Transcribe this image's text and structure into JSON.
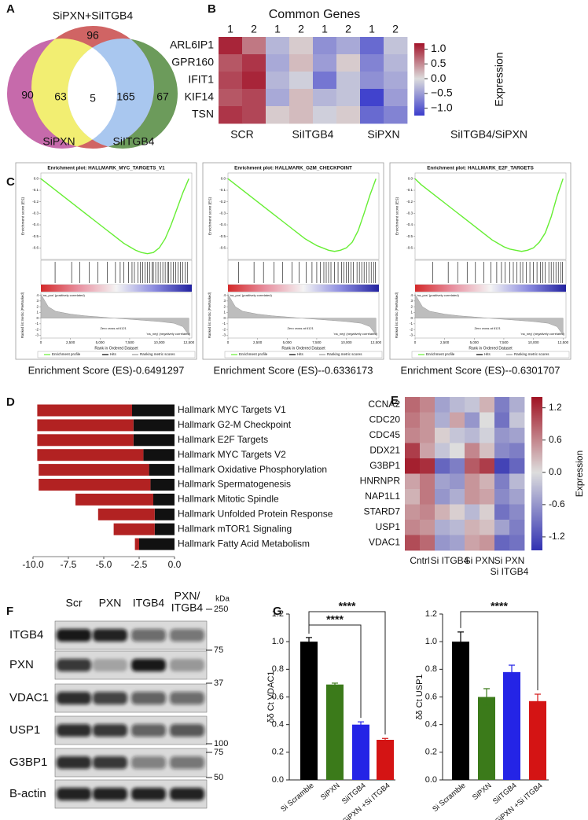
{
  "chart_data": [
    {
      "type": "venn",
      "label": "A",
      "sets": [
        "SiPXN",
        "SiITGB4",
        "SiPXN+SiITGB4"
      ],
      "regions": [
        90,
        63,
        5,
        165,
        67,
        96
      ],
      "colors": [
        "#c66aab",
        "#6c9b5b",
        "#d06464",
        "#f2ee72",
        "#a9c7ef",
        "#ffffff"
      ]
    },
    {
      "type": "heatmap",
      "label": "B",
      "title": "Common Genes",
      "rows": [
        "ARL6IP1",
        "GPR160",
        "IFIT1",
        "KIF14",
        "TSN"
      ],
      "columns": [
        "1",
        "2",
        "1",
        "2",
        "1",
        "2",
        "1",
        "2"
      ],
      "groups": [
        "SCR",
        "SiITGB4",
        "SiPXN"
      ],
      "values": [
        [
          1.1,
          0.6,
          -0.3,
          0.1,
          -0.6,
          -0.4,
          -0.9,
          -0.2
        ],
        [
          0.8,
          1.0,
          -0.4,
          0.2,
          -0.5,
          0.1,
          -0.7,
          -0.3
        ],
        [
          0.9,
          1.1,
          -0.3,
          -0.1,
          -0.8,
          -0.2,
          -0.6,
          -0.4
        ],
        [
          0.8,
          0.9,
          -0.4,
          0.2,
          -0.3,
          -0.2,
          -1.2,
          -0.5
        ],
        [
          1.0,
          0.9,
          0.1,
          0.2,
          -0.1,
          0.1,
          -0.9,
          -0.7
        ]
      ],
      "colors": [
        "#3b3dcc",
        "#dcdcdc",
        "#a3142a"
      ],
      "clim": [
        -1.25,
        1.2
      ],
      "cbar_ticks": [
        {
          "value": 1,
          "label": "1.0"
        },
        0.5,
        {
          "value": 0,
          "label": "0.0"
        },
        {
          "value": -0.5,
          "label": "−0.5"
        },
        {
          "value": -1,
          "label": "−1.0"
        }
      ],
      "cbar_label": "Expression",
      "caption": "SiITGB4/SiPXN"
    },
    {
      "type": "gsea",
      "label": "C",
      "es_label": "Enrichment score (ES)",
      "metric_label": "Ranked list metric (PreRanked)",
      "xlabel": "Rank in Ordered Dataset",
      "xlim": [
        0,
        12750
      ],
      "xticks": [
        0,
        {
          "value": 2500,
          "label": "2,500"
        },
        {
          "value": 5000,
          "label": "5,000"
        },
        {
          "value": 7500,
          "label": "7,500"
        },
        {
          "value": 10000,
          "label": "10,000"
        },
        {
          "value": 12500,
          "label": "12,500"
        }
      ],
      "es_ylim": [
        -0.7,
        0.05
      ],
      "es_yticks": [
        {
          "value": 0,
          "label": "0.0"
        },
        -0.1,
        -0.2,
        -0.3,
        -0.4,
        -0.5,
        -0.6
      ],
      "metric_ylim": [
        -3.5,
        4.5
      ],
      "metric_yticks": [
        4,
        3,
        2,
        1,
        0,
        -1,
        -2,
        -3
      ],
      "pos_label": "'na_pos' (positively correlated)",
      "neg_label": "'na_neg' (negatively correlated)",
      "zero_cross": "Zero cross at 6121",
      "legend": [
        "Enrichment profile",
        "Hits",
        "Ranking metric scores"
      ],
      "legend_colors": [
        "#66ee33",
        "#000000",
        "#999999"
      ],
      "es_x": [
        0,
        500,
        1000,
        1500,
        2000,
        2500,
        3000,
        3500,
        4000,
        4500,
        5000,
        5500,
        6000,
        6500,
        7000,
        7500,
        8000,
        8500,
        9000,
        9500,
        10000,
        10500,
        11000,
        11500,
        12000,
        12500
      ],
      "metric_x": [
        0,
        625,
        1250,
        2500,
        3750,
        5000,
        6121,
        7500,
        8750,
        10000,
        11250,
        12000,
        12500
      ],
      "metric_values": [
        4.2,
        2,
        1.2,
        0.7,
        0.4,
        0.2,
        0,
        -0.2,
        -0.4,
        -0.6,
        -0.9,
        -1.5,
        -3
      ],
      "plots": [
        {
          "title": "Enrichment plot: HALLMARK_MYC_TARGETS_V1",
          "caption": "Enrichment Score (ES)-0.6491297",
          "es_values": [
            0,
            -0.04,
            -0.08,
            -0.12,
            -0.16,
            -0.2,
            -0.24,
            -0.28,
            -0.32,
            -0.36,
            -0.4,
            -0.44,
            -0.48,
            -0.52,
            -0.56,
            -0.59,
            -0.62,
            -0.64,
            -0.65,
            -0.64,
            -0.6,
            -0.52,
            -0.4,
            -0.26,
            -0.12,
            0
          ],
          "hits": [
            1200,
            2600,
            3300,
            4100,
            4800,
            5600,
            6300,
            6700,
            7000,
            7400,
            7700,
            7900,
            8200,
            8400,
            8600,
            8800,
            9000,
            9200,
            9400,
            9500,
            9700,
            9900,
            10100,
            10300,
            10500,
            10700,
            10800,
            11000,
            11200,
            11400,
            11600,
            11800,
            12000,
            12200,
            12400
          ]
        },
        {
          "title": "Enrichment plot: HALLMARK_G2M_CHECKPOINT",
          "caption": "Enrichment Score (ES)--0.6336173",
          "es_values": [
            0,
            -0.04,
            -0.08,
            -0.12,
            -0.16,
            -0.2,
            -0.24,
            -0.28,
            -0.32,
            -0.36,
            -0.4,
            -0.44,
            -0.48,
            -0.52,
            -0.55,
            -0.58,
            -0.6,
            -0.62,
            -0.63,
            -0.62,
            -0.6,
            -0.55,
            -0.45,
            -0.3,
            -0.14,
            0
          ],
          "hits": [
            900,
            2200,
            3000,
            3900,
            4600,
            5400,
            6000,
            6600,
            7100,
            7500,
            7800,
            8100,
            8300,
            8500,
            8700,
            9000,
            9300,
            9600,
            9800,
            10000,
            10200,
            10400,
            10600,
            10900,
            11100,
            11300,
            11500,
            11700,
            11900,
            12100,
            12300,
            12450
          ]
        },
        {
          "title": "Enrichment plot: HALLMARK_E2F_TARGETS",
          "caption": "Enrichment Score (ES)--0.6301707",
          "es_values": [
            0,
            -0.05,
            -0.09,
            -0.13,
            -0.17,
            -0.21,
            -0.25,
            -0.29,
            -0.33,
            -0.37,
            -0.41,
            -0.45,
            -0.49,
            -0.53,
            -0.56,
            -0.59,
            -0.61,
            -0.62,
            -0.63,
            -0.62,
            -0.6,
            -0.55,
            -0.47,
            -0.33,
            -0.15,
            0
          ],
          "hits": [
            1500,
            2800,
            3600,
            4400,
            5100,
            5800,
            6400,
            6900,
            7300,
            7600,
            8000,
            8300,
            8600,
            8900,
            9100,
            9400,
            9700,
            10000,
            10300,
            10600,
            10800,
            11000,
            11300,
            11500,
            11700,
            11900,
            12100,
            12300,
            12450
          ]
        }
      ]
    },
    {
      "type": "barh",
      "label": "D",
      "categories": [
        "Hallmark MYC Targets V1",
        "Hallmark G2-M Checkpoint",
        "Hallmark E2F Targets",
        "Hallmark MYC Targets V2",
        "Hallmark Oxidative Phosphorylation",
        "Hallmark Spermatogenesis",
        "Hallmark Mitotic Spindle",
        "Hallmark Unfolded Protein Response",
        "Hallmark mTOR1 Signaling",
        "Hallmark Fatty Acid Metabolism"
      ],
      "series": [
        {
          "color": "#111111",
          "values": [
            -3.0,
            -2.9,
            -2.9,
            -2.2,
            -1.8,
            -1.7,
            -1.5,
            -1.4,
            -1.4,
            -2.5
          ]
        },
        {
          "color": "#b22222",
          "values": [
            -6.7,
            -6.8,
            -6.8,
            -7.5,
            -7.8,
            -7.9,
            -5.5,
            -4.0,
            -2.9,
            -0.3
          ]
        }
      ],
      "xlim": [
        -10,
        0
      ],
      "xticks": [
        {
          "value": -10,
          "label": "-10.0"
        },
        -7.5,
        {
          "value": -5,
          "label": "-5.0"
        },
        -2.5,
        {
          "value": 0,
          "label": "0.0"
        }
      ]
    },
    {
      "type": "heatmap",
      "label": "E",
      "rows": [
        "CCNA2",
        "CDC20",
        "CDC45",
        "DDX21",
        "G3BP1",
        "HNRNPR",
        "NAP1L1",
        "STARD7",
        "USP1",
        "VDAC1"
      ],
      "groups": [
        "Cntrl",
        "Si ITGB4",
        "Si PXN",
        [
          "Si PXN",
          "Si ITGB4"
        ]
      ],
      "values": [
        [
          0.8,
          0.6,
          -0.5,
          -0.3,
          -0.2,
          0.3,
          -0.8,
          -0.4
        ],
        [
          0.7,
          0.5,
          -0.4,
          0.4,
          -0.6,
          0.0,
          -0.9,
          -0.2
        ],
        [
          0.6,
          0.5,
          0.1,
          -0.2,
          -0.3,
          -0.1,
          -0.6,
          -0.5
        ],
        [
          1.1,
          0.4,
          -0.2,
          0.0,
          0.6,
          0.2,
          -0.7,
          -0.8
        ],
        [
          1.3,
          1.2,
          -1.0,
          -0.8,
          0.9,
          1.1,
          -1.3,
          -1.0
        ],
        [
          0.4,
          0.7,
          -0.5,
          -0.6,
          0.5,
          0.3,
          -0.8,
          -0.3
        ],
        [
          0.3,
          0.7,
          -0.6,
          -0.4,
          0.5,
          0.4,
          -0.7,
          -0.5
        ],
        [
          0.5,
          0.6,
          0.3,
          0.1,
          -0.3,
          0.1,
          -0.9,
          -0.7
        ],
        [
          0.6,
          0.5,
          -0.4,
          -0.3,
          0.3,
          0.2,
          -0.5,
          -0.8
        ],
        [
          1.0,
          0.8,
          -0.6,
          -0.5,
          0.4,
          0.5,
          -1.0,
          -0.9
        ]
      ],
      "colors": [
        "#3131b2",
        "#dddddd",
        "#a01222"
      ],
      "clim": [
        -1.45,
        1.4
      ],
      "cbar_ticks": [
        1.2,
        0.6,
        {
          "value": 0,
          "label": "0.0"
        },
        -0.6,
        -1.2
      ],
      "cbar_label": "Expression"
    },
    {
      "type": "blot",
      "label": "F",
      "lanes": [
        "Scr",
        "PXN",
        "ITGB4",
        [
          "PXN/",
          "ITGB4"
        ]
      ],
      "unit": "kDa",
      "rows": [
        "ITGB4",
        "PXN",
        "VDAC1",
        "USP1",
        "G3BP1",
        "B-actin"
      ],
      "intensity": [
        [
          0.95,
          0.9,
          0.55,
          0.5
        ],
        [
          0.8,
          0.25,
          0.95,
          0.3
        ],
        [
          0.85,
          0.75,
          0.6,
          0.55
        ],
        [
          0.85,
          0.8,
          0.6,
          0.65
        ],
        [
          0.85,
          0.8,
          0.45,
          0.5
        ],
        [
          0.9,
          0.9,
          0.9,
          0.9
        ]
      ],
      "markers": [
        250,
        75,
        37,
        100,
        75,
        50
      ]
    },
    {
      "type": "bar",
      "label": "G",
      "ylabel": "δδ Ct VDAC1",
      "categories": [
        "Si Scramble",
        "SiPXN",
        "SiITGB4",
        "SiPXN +Si ITGB4"
      ],
      "values": [
        1.0,
        0.69,
        0.4,
        0.29
      ],
      "errors": [
        0.03,
        0.01,
        0.02,
        0.01
      ],
      "colors": [
        "#000000",
        "#3b7a1a",
        "#2424e6",
        "#d41414"
      ],
      "ylim": [
        0,
        1.2
      ],
      "yticks": [
        {
          "value": 0,
          "label": "0.0"
        },
        0.2,
        0.4,
        0.6,
        0.8,
        {
          "value": 1,
          "label": "1.0"
        },
        1.2
      ],
      "annotations": [
        {
          "text": "****",
          "pair": [
            "Si Scramble",
            "SiPXN +Si ITGB4"
          ]
        },
        {
          "text": "****",
          "pair": [
            "Si Scramble",
            "SiITGB4"
          ]
        }
      ]
    },
    {
      "type": "bar",
      "ylabel": "δδ Ct USP1",
      "categories": [
        "Si Scramble",
        "SiPXN",
        "SiITGB4",
        "SiPXN +Si ITGB4"
      ],
      "values": [
        1.0,
        0.6,
        0.78,
        0.57
      ],
      "errors": [
        0.07,
        0.06,
        0.05,
        0.05
      ],
      "colors": [
        "#000000",
        "#3b7a1a",
        "#2424e6",
        "#d41414"
      ],
      "ylim": [
        0,
        1.2
      ],
      "yticks": [
        {
          "value": 0,
          "label": "0.0"
        },
        0.2,
        0.4,
        0.6,
        0.8,
        {
          "value": 1,
          "label": "1.0"
        },
        1.2
      ],
      "annotations": [
        {
          "text": "****",
          "pair": [
            "Si Scramble",
            "SiPXN +Si ITGB4"
          ]
        }
      ]
    }
  ]
}
